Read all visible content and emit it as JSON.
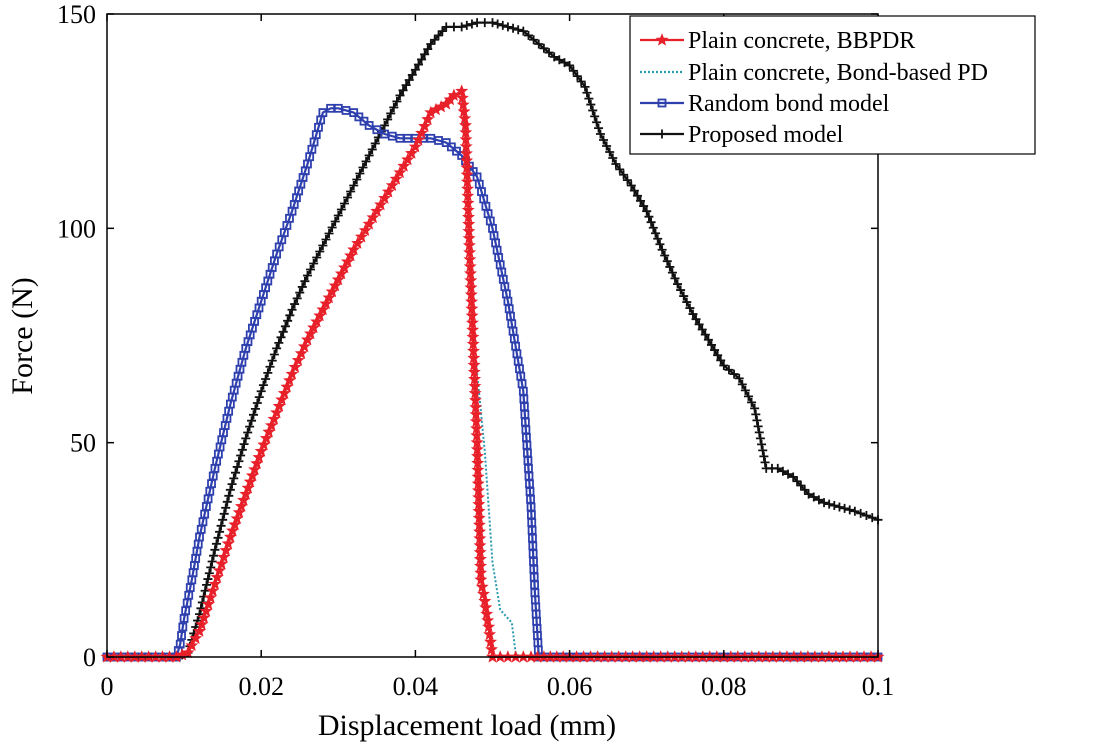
{
  "chart_data": {
    "type": "line",
    "title": "",
    "xlabel": "Displacement load (mm)",
    "ylabel": "Force (N)",
    "xlim": [
      0,
      0.1
    ],
    "ylim": [
      0,
      150
    ],
    "xticks": [
      0,
      0.02,
      0.04,
      0.06,
      0.08,
      0.1
    ],
    "xtick_labels": [
      "0",
      "0.02",
      "0.04",
      "0.06",
      "0.08",
      "0.1"
    ],
    "yticks": [
      0,
      50,
      100,
      150
    ],
    "ytick_labels": [
      "0",
      "50",
      "100",
      "150"
    ],
    "grid": false,
    "legend_position": "top-right",
    "series": [
      {
        "name": "Plain concrete, BBPDR",
        "color": "#e8202a",
        "line_style": "solid",
        "marker": "star",
        "points": [
          [
            0,
            0
          ],
          [
            0.009,
            0
          ],
          [
            0.0105,
            1
          ],
          [
            0.012,
            6
          ],
          [
            0.014,
            17
          ],
          [
            0.016,
            28
          ],
          [
            0.018,
            38
          ],
          [
            0.02,
            48
          ],
          [
            0.022,
            57
          ],
          [
            0.024,
            66
          ],
          [
            0.026,
            74
          ],
          [
            0.028,
            81
          ],
          [
            0.03,
            88
          ],
          [
            0.032,
            95
          ],
          [
            0.034,
            101
          ],
          [
            0.036,
            107
          ],
          [
            0.038,
            113
          ],
          [
            0.04,
            119
          ],
          [
            0.042,
            127
          ],
          [
            0.044,
            129
          ],
          [
            0.045,
            131
          ],
          [
            0.046,
            132
          ],
          [
            0.0465,
            124
          ],
          [
            0.047,
            96
          ],
          [
            0.048,
            50
          ],
          [
            0.0485,
            18
          ],
          [
            0.049,
            13
          ],
          [
            0.0495,
            7
          ],
          [
            0.05,
            0
          ],
          [
            0.051,
            0
          ],
          [
            0.052,
            0
          ],
          [
            0.053,
            0
          ],
          [
            0.054,
            0
          ],
          [
            0.055,
            0
          ],
          [
            0.06,
            0
          ],
          [
            0.07,
            0
          ],
          [
            0.08,
            0
          ],
          [
            0.09,
            0
          ],
          [
            0.1,
            0
          ]
        ]
      },
      {
        "name": "Plain concrete, Bond-based PD",
        "color": "#2a9bb0",
        "line_style": "dotted",
        "marker": "none",
        "points": [
          [
            0,
            0
          ],
          [
            0.009,
            0
          ],
          [
            0.0105,
            1
          ],
          [
            0.012,
            6
          ],
          [
            0.014,
            17
          ],
          [
            0.016,
            28
          ],
          [
            0.018,
            38
          ],
          [
            0.02,
            48
          ],
          [
            0.022,
            57
          ],
          [
            0.024,
            66
          ],
          [
            0.026,
            74
          ],
          [
            0.028,
            81
          ],
          [
            0.03,
            88
          ],
          [
            0.032,
            95
          ],
          [
            0.034,
            101
          ],
          [
            0.036,
            107
          ],
          [
            0.038,
            113
          ],
          [
            0.04,
            119
          ],
          [
            0.042,
            127
          ],
          [
            0.044,
            129
          ],
          [
            0.046,
            132
          ],
          [
            0.0468,
            110
          ],
          [
            0.0478,
            70
          ],
          [
            0.049,
            48
          ],
          [
            0.05,
            22
          ],
          [
            0.051,
            11
          ],
          [
            0.0525,
            8
          ],
          [
            0.053,
            1
          ],
          [
            0.0535,
            0
          ],
          [
            0.06,
            0
          ],
          [
            0.08,
            0
          ],
          [
            0.1,
            0
          ]
        ]
      },
      {
        "name": "Random bond model",
        "color": "#2e3fae",
        "line_style": "solid",
        "marker": "square",
        "points": [
          [
            0,
            0
          ],
          [
            0.009,
            0
          ],
          [
            0.0095,
            3
          ],
          [
            0.01,
            9
          ],
          [
            0.011,
            18
          ],
          [
            0.012,
            28
          ],
          [
            0.014,
            44
          ],
          [
            0.016,
            59
          ],
          [
            0.018,
            72
          ],
          [
            0.02,
            83
          ],
          [
            0.022,
            94
          ],
          [
            0.024,
            104
          ],
          [
            0.026,
            115
          ],
          [
            0.028,
            127
          ],
          [
            0.029,
            128
          ],
          [
            0.03,
            128
          ],
          [
            0.032,
            127
          ],
          [
            0.034,
            124
          ],
          [
            0.036,
            122
          ],
          [
            0.038,
            121
          ],
          [
            0.04,
            121
          ],
          [
            0.042,
            121
          ],
          [
            0.044,
            120
          ],
          [
            0.046,
            117
          ],
          [
            0.048,
            112
          ],
          [
            0.05,
            100
          ],
          [
            0.052,
            83
          ],
          [
            0.054,
            62
          ],
          [
            0.055,
            35
          ],
          [
            0.0555,
            15
          ],
          [
            0.056,
            0
          ],
          [
            0.057,
            0
          ],
          [
            0.06,
            0
          ],
          [
            0.07,
            0
          ],
          [
            0.08,
            0
          ],
          [
            0.09,
            0
          ],
          [
            0.1,
            0
          ]
        ]
      },
      {
        "name": "Proposed model",
        "color": "#111111",
        "line_style": "solid",
        "marker": "plus",
        "points": [
          [
            0,
            0
          ],
          [
            0.009,
            0
          ],
          [
            0.0105,
            1
          ],
          [
            0.011,
            4
          ],
          [
            0.012,
            10
          ],
          [
            0.014,
            25
          ],
          [
            0.016,
            39
          ],
          [
            0.018,
            51
          ],
          [
            0.02,
            62
          ],
          [
            0.022,
            72
          ],
          [
            0.024,
            81
          ],
          [
            0.026,
            89
          ],
          [
            0.028,
            96
          ],
          [
            0.03,
            103
          ],
          [
            0.032,
            110
          ],
          [
            0.034,
            117
          ],
          [
            0.036,
            124
          ],
          [
            0.038,
            131
          ],
          [
            0.04,
            137
          ],
          [
            0.042,
            143
          ],
          [
            0.044,
            147
          ],
          [
            0.046,
            147
          ],
          [
            0.048,
            148
          ],
          [
            0.05,
            148
          ],
          [
            0.052,
            147
          ],
          [
            0.054,
            146
          ],
          [
            0.056,
            143
          ],
          [
            0.058,
            140
          ],
          [
            0.06,
            138
          ],
          [
            0.062,
            133
          ],
          [
            0.064,
            122
          ],
          [
            0.066,
            115
          ],
          [
            0.068,
            110
          ],
          [
            0.07,
            104
          ],
          [
            0.072,
            95
          ],
          [
            0.074,
            87
          ],
          [
            0.076,
            80
          ],
          [
            0.078,
            74
          ],
          [
            0.08,
            68
          ],
          [
            0.082,
            65
          ],
          [
            0.084,
            58
          ],
          [
            0.0855,
            44
          ],
          [
            0.087,
            44
          ],
          [
            0.089,
            42
          ],
          [
            0.091,
            38
          ],
          [
            0.093,
            36
          ],
          [
            0.095,
            35
          ],
          [
            0.097,
            34
          ],
          [
            0.1,
            32
          ]
        ]
      }
    ]
  }
}
